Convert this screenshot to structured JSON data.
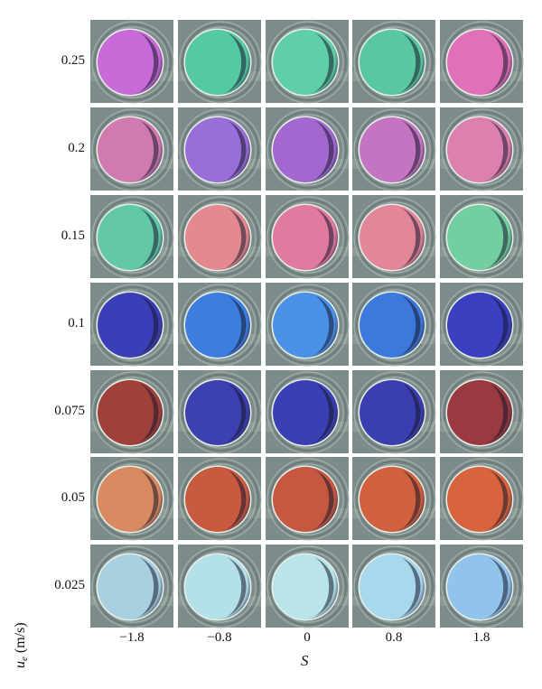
{
  "figure": {
    "y_axis": {
      "symbol": "u",
      "subscript": "e",
      "unit": "(m/s)",
      "ticks": [
        "0.25",
        "0.2",
        "0.15",
        "0.1",
        "0.075",
        "0.05",
        "0.025"
      ]
    },
    "x_axis": {
      "symbol": "S",
      "ticks": [
        "−1.8",
        "−0.8",
        "0",
        "0.8",
        "1.8"
      ]
    },
    "panel_colors": {
      "background": "#7c8c8a",
      "rows": [
        [
          "#c86ad8",
          "#54c9a4",
          "#5fcfa9",
          "#5ac7a3",
          "#e070b8"
        ],
        [
          "#d07ab0",
          "#9a6ed8",
          "#a368d0",
          "#c474c0",
          "#dc80b0"
        ],
        [
          "#62c8a8",
          "#e28a90",
          "#e07aa0",
          "#e3869a",
          "#74cfa0"
        ],
        [
          "#3a3fb8",
          "#3c7ee0",
          "#4a90e4",
          "#3d78dc",
          "#3a40c0"
        ],
        [
          "#a0403a",
          "#3c40b0",
          "#3a3fb4",
          "#3a3eb0",
          "#983a40"
        ],
        [
          "#d88a60",
          "#c85a40",
          "#c65842",
          "#d0603e",
          "#d8643e"
        ],
        [
          "#a8d0e0",
          "#b4e0e8",
          "#b8e4ea",
          "#a8d8ec",
          "#90c4ea"
        ]
      ]
    }
  }
}
